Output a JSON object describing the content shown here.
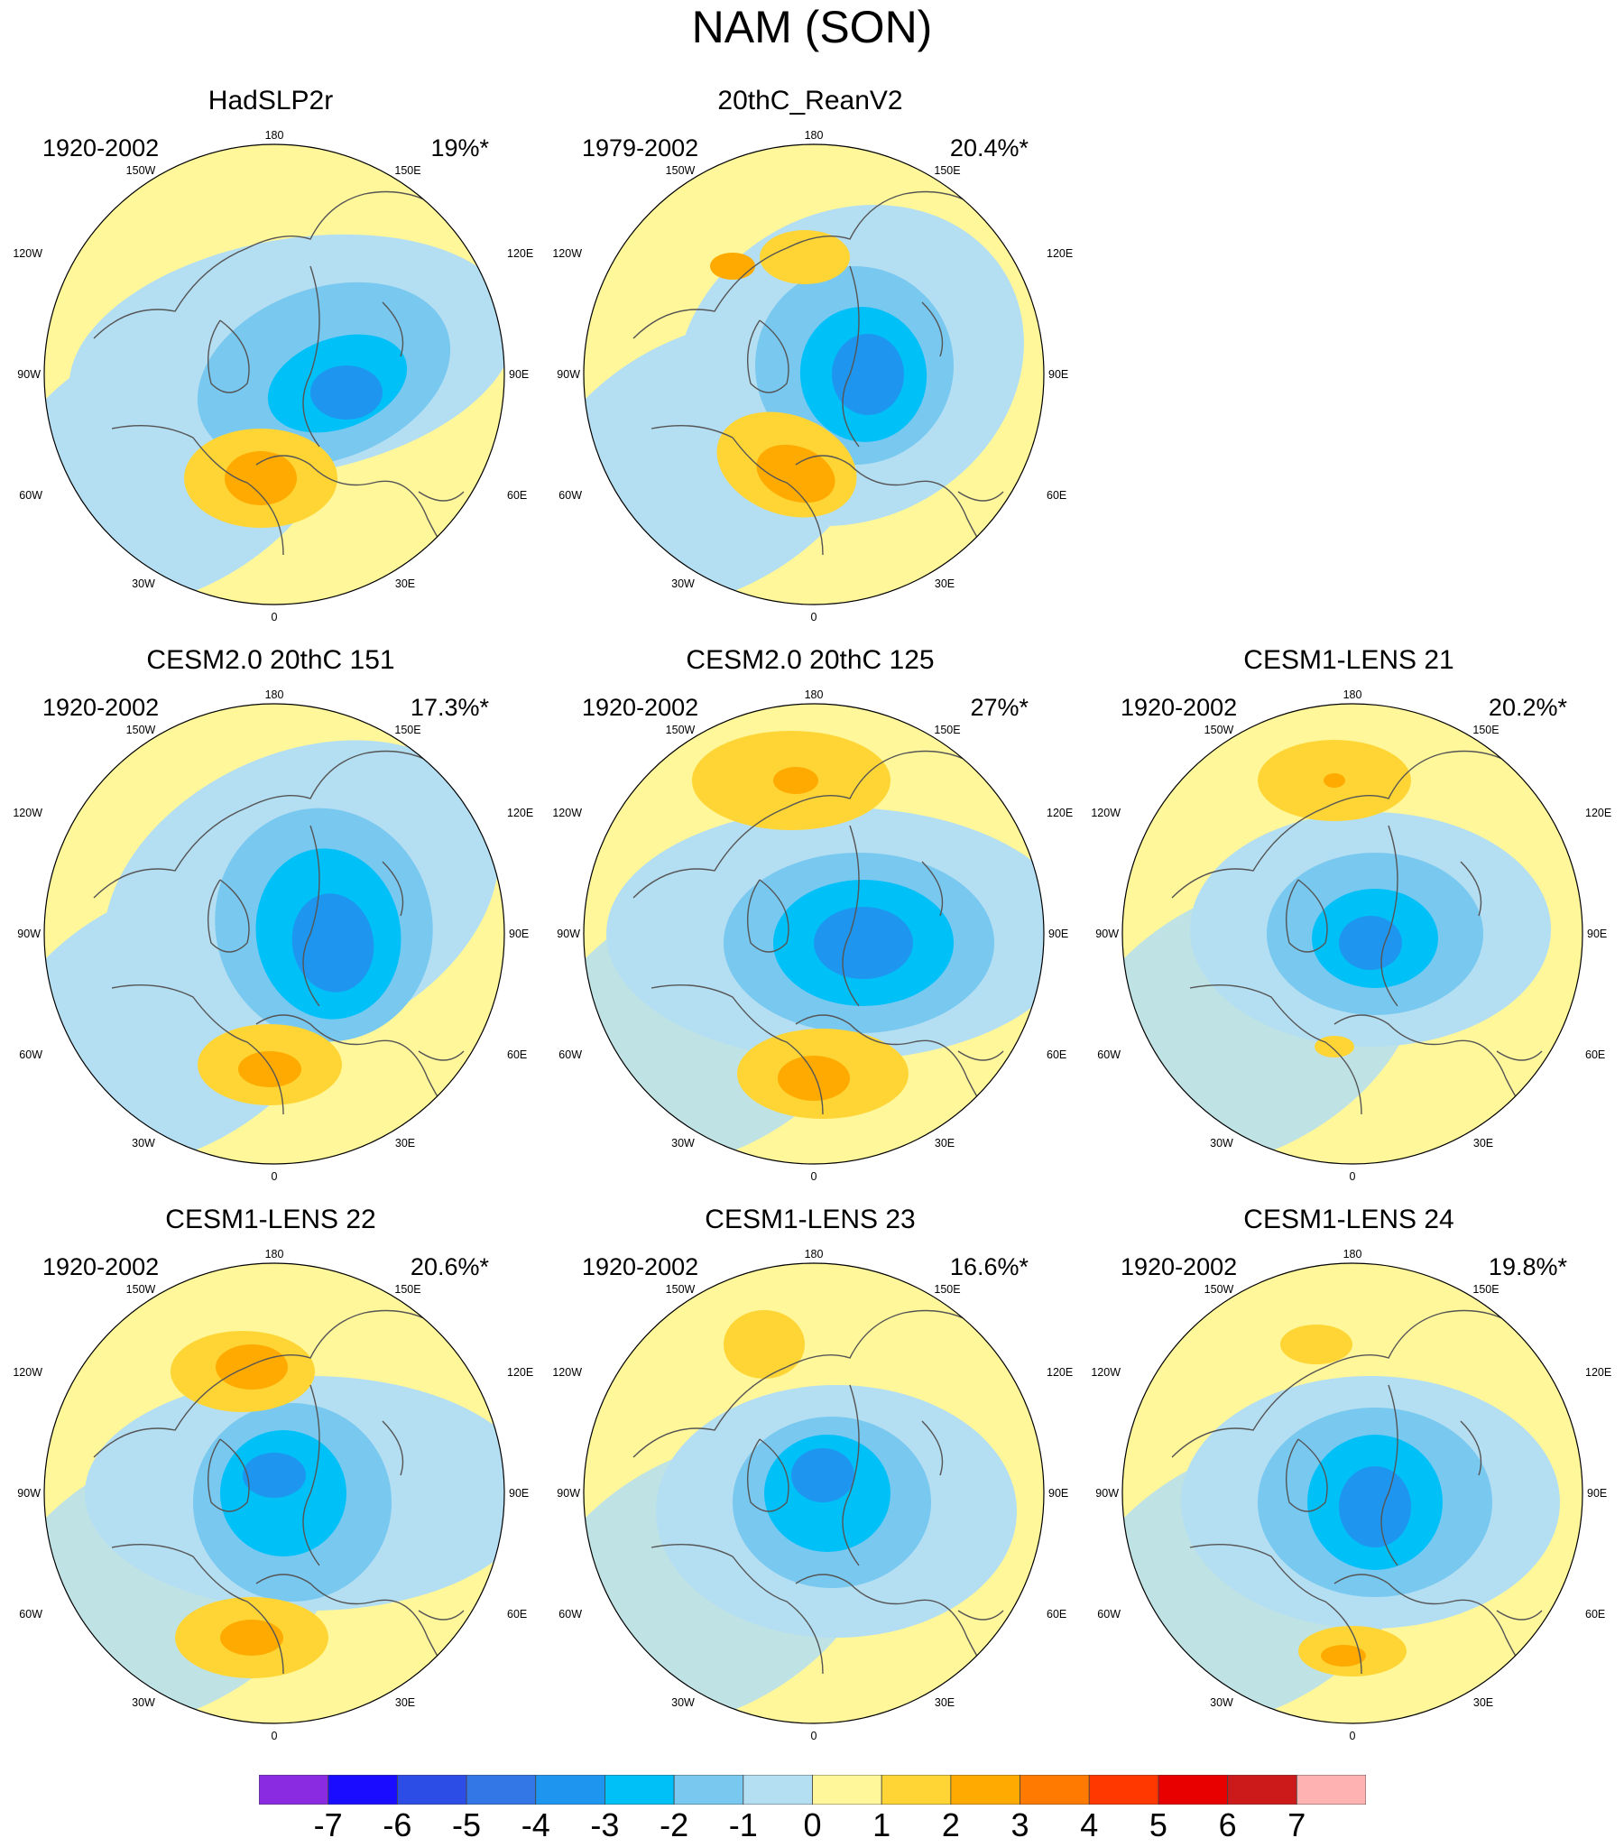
{
  "title": "NAM (SON)",
  "colors": {
    "neg7": "#8a2be2",
    "neg6": "#1a0dff",
    "neg5": "#2c4de6",
    "neg4": "#3377e6",
    "neg3": "#1e96f0",
    "neg2": "#00c0f8",
    "neg1": "#78c8f0",
    "neg0": "#b4def2",
    "pos0": "#fff79a",
    "pos1": "#ffd535",
    "pos2": "#ffaa00",
    "pos3": "#ff7a00",
    "pos4": "#ff3800",
    "pos5": "#e80000",
    "pos6": "#cc1a1a",
    "pos7": "#ffb2b2",
    "coast": "#555555"
  },
  "longitude_labels": {
    "top": "180",
    "bottom": "0",
    "w150": "150W",
    "w120": "120W",
    "w90": "90W",
    "w60": "60W",
    "w30": "30W",
    "e150": "150E",
    "e120": "120E",
    "e90": "90E",
    "e60": "60E",
    "e30": "30E"
  },
  "panels": [
    {
      "title": "HadSLP2r",
      "years": "1920-2002",
      "variance": "19%*"
    },
    {
      "title": "20thC_ReanV2",
      "years": "1979-2002",
      "variance": "20.4%*"
    },
    {
      "title": "CESM2.0 20thC 151",
      "years": "1920-2002",
      "variance": "17.3%*"
    },
    {
      "title": "CESM2.0 20thC 125",
      "years": "1920-2002",
      "variance": "27%*"
    },
    {
      "title": "CESM1-LENS 21",
      "years": "1920-2002",
      "variance": "20.2%*"
    },
    {
      "title": "CESM1-LENS 22",
      "years": "1920-2002",
      "variance": "20.6%*"
    },
    {
      "title": "CESM1-LENS 23",
      "years": "1920-2002",
      "variance": "16.6%*"
    },
    {
      "title": "CESM1-LENS 24",
      "years": "1920-2002",
      "variance": "19.8%*"
    }
  ],
  "colorbar": {
    "labels": [
      "-7",
      "-6",
      "-5",
      "-4",
      "-3",
      "-2",
      "-1",
      "0",
      "1",
      "2",
      "3",
      "4",
      "5",
      "6",
      "7"
    ]
  }
}
